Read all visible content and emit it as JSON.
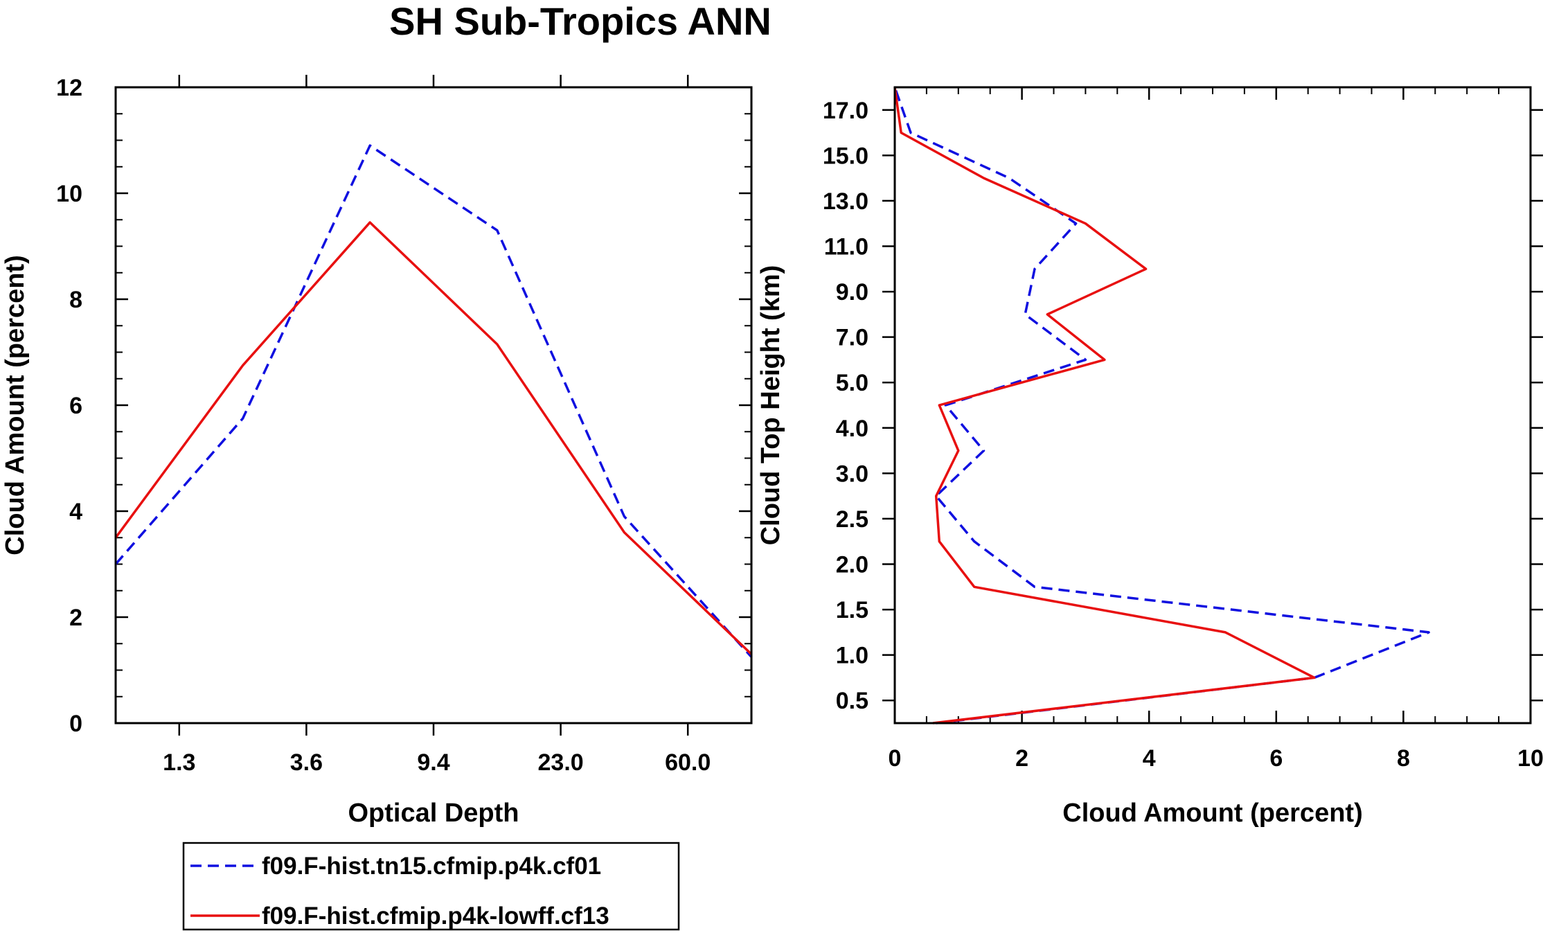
{
  "figure_title": "SH Sub-Tropics ANN",
  "legend": [
    {
      "label": "f09.F-hist.tn15.cfmip.p4k.cf01",
      "color": "#1010e0",
      "dash": "dashed"
    },
    {
      "label": "f09.F-hist.cfmip.p4k-lowff.cf13",
      "color": "#e81010",
      "dash": "solid"
    }
  ],
  "chart_data": [
    {
      "type": "line",
      "title": "",
      "xlabel": "Optical Depth",
      "ylabel": "Cloud Amount (percent)",
      "xlim": [
        0,
        5
      ],
      "ylim": [
        0,
        12
      ],
      "yticks": [
        "0",
        "2",
        "4",
        "6",
        "8",
        "10",
        "12"
      ],
      "xtick_labels": [
        "1.3",
        "3.6",
        "9.4",
        "23.0",
        "60.0"
      ],
      "xtick_positions": [
        0.5,
        1.5,
        2.5,
        3.5,
        4.5
      ],
      "x": [
        0,
        1,
        2,
        3,
        4,
        5
      ],
      "series": [
        {
          "name": "f09.F-hist.tn15.cfmip.p4k.cf01",
          "values": [
            3.0,
            5.75,
            10.9,
            9.3,
            3.9,
            1.25
          ]
        },
        {
          "name": "f09.F-hist.cfmip.p4k-lowff.cf13",
          "values": [
            3.5,
            6.75,
            9.45,
            7.15,
            3.6,
            1.3
          ]
        }
      ]
    },
    {
      "type": "line",
      "title": "",
      "xlabel": "Cloud Amount (percent)",
      "ylabel": "Cloud Top Height (km)",
      "xlim": [
        0,
        10
      ],
      "ylim": [
        0,
        14
      ],
      "xticks": [
        "0",
        "2",
        "4",
        "6",
        "8",
        "10"
      ],
      "ytick_labels": [
        "0.5",
        "1.0",
        "1.5",
        "2.0",
        "2.5",
        "3.0",
        "4.0",
        "5.0",
        "7.0",
        "9.0",
        "11.0",
        "13.0",
        "15.0",
        "17.0"
      ],
      "ytick_positions": [
        0.5,
        1.5,
        2.5,
        3.5,
        4.5,
        5.5,
        6.5,
        7.5,
        8.5,
        9.5,
        10.5,
        11.5,
        12.5,
        13.5
      ],
      "levels": [
        0,
        1,
        2,
        3,
        4,
        5,
        6,
        7,
        8,
        9,
        10,
        11,
        12,
        13,
        14
      ],
      "series": [
        {
          "name": "f09.F-hist.tn15.cfmip.p4k.cf01",
          "values": [
            0.65,
            6.6,
            8.4,
            2.2,
            1.25,
            0.65,
            1.4,
            0.8,
            3.0,
            2.05,
            2.2,
            2.85,
            1.8,
            0.25,
            0.0
          ]
        },
        {
          "name": "f09.F-hist.cfmip.p4k-lowff.cf13",
          "values": [
            0.6,
            6.6,
            5.2,
            1.25,
            0.7,
            0.65,
            1.0,
            0.7,
            3.3,
            2.4,
            3.95,
            3.0,
            1.4,
            0.1,
            0.0
          ]
        }
      ]
    }
  ]
}
